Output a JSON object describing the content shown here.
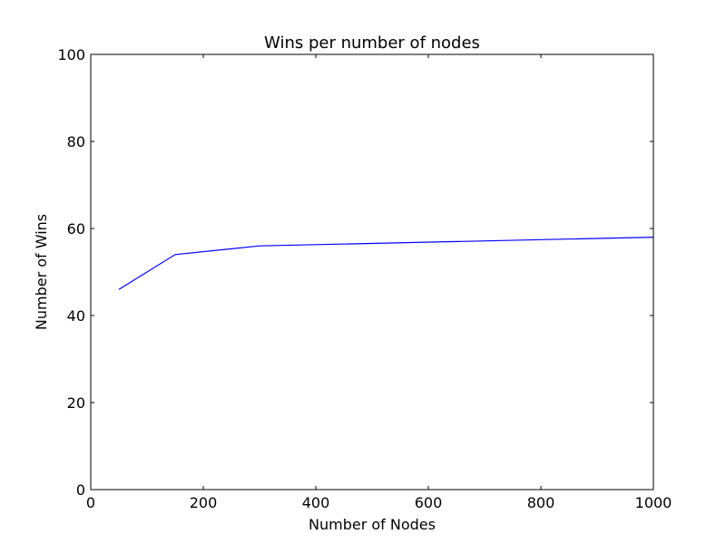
{
  "chart_data": {
    "type": "line",
    "title": "Wins per number of nodes",
    "xlabel": "Number of Nodes",
    "ylabel": "Number of Wins",
    "xlim": [
      0,
      1000
    ],
    "ylim": [
      0,
      100
    ],
    "xticks": [
      0,
      200,
      400,
      600,
      800,
      1000
    ],
    "yticks": [
      0,
      20,
      40,
      60,
      80,
      100
    ],
    "grid": false,
    "series": [
      {
        "color": "#0000ff",
        "x": [
          50,
          150,
          300,
          1000
        ],
        "y": [
          46,
          54,
          56,
          58
        ]
      }
    ]
  }
}
